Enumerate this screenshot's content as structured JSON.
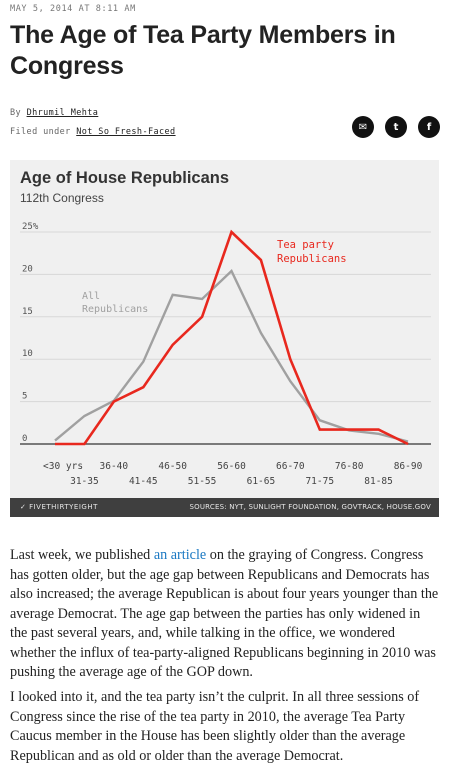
{
  "article": {
    "dateline": "MAY 5, 2014 AT 8:11 AM",
    "title": "The Age of Tea Party Members in Congress",
    "byline_prefix": "By",
    "author": "Dhrumil Mehta",
    "filed_prefix": "Filed under",
    "category": "Not So Fresh-Faced"
  },
  "share": {
    "icons": [
      "email-icon",
      "twitter-icon",
      "facebook-icon"
    ],
    "glyphs": [
      "✉",
      "t",
      "f"
    ]
  },
  "chart": {
    "title": "Age of House Republicans",
    "subtitle": "112th Congress",
    "brand": "FIVETHIRTYEIGHT",
    "sources": "SOURCES: NYT, SUNLIGHT FOUNDATION, GOVTRACK, HOUSE.GOV",
    "labels": {
      "all": [
        "All",
        "Republicans"
      ],
      "tea": [
        "Tea party",
        "Republicans"
      ]
    },
    "colors": {
      "all": "#a0a0a0",
      "tea": "#e8281e",
      "grid": "#d7d7d7",
      "axis": "#333333"
    }
  },
  "chart_data": {
    "type": "line",
    "title": "Age of House Republicans",
    "subtitle": "112th Congress",
    "categories": [
      "<30 yrs",
      "31-35",
      "36-40",
      "41-45",
      "46-50",
      "51-55",
      "56-60",
      "61-65",
      "66-70",
      "71-75",
      "76-80",
      "81-85",
      "86-90"
    ],
    "ylim": [
      0,
      25
    ],
    "yticks": [
      "0",
      "5",
      "10",
      "15",
      "20",
      "25%"
    ],
    "grid": true,
    "series": [
      {
        "name": "All Republicans",
        "color": "#a0a0a0",
        "values": [
          0.4,
          3.3,
          5.1,
          9.7,
          17.6,
          17.1,
          20.4,
          13.1,
          7.4,
          2.8,
          1.6,
          1.2,
          0.3
        ]
      },
      {
        "name": "Tea party Republicans",
        "color": "#e8281e",
        "values": [
          0,
          0,
          5,
          6.7,
          11.7,
          15,
          25,
          21.7,
          10,
          1.7,
          1.7,
          1.7,
          0
        ]
      }
    ]
  },
  "paragraphs": [
    {
      "before": "Last week, we published ",
      "link": "an article",
      "after": " on the graying of Congress. Congress has gotten older, but the age gap between Republicans and Democrats has also increased; the average Republican is about four years younger than the average Democrat. The age gap between the parties has only widened in the past several years, and, while talking in the office, we wondered whether the influx of tea-party-aligned Republicans beginning in 2010 was pushing the average age of the GOP down."
    },
    {
      "text": "I looked into it, and the tea party isn’t the culprit. In all three sessions of Congress since the rise of the tea party in 2010, the average Tea Party Caucus member in the House has been slightly older than the average Republican and as old or older than the average Democrat."
    }
  ]
}
